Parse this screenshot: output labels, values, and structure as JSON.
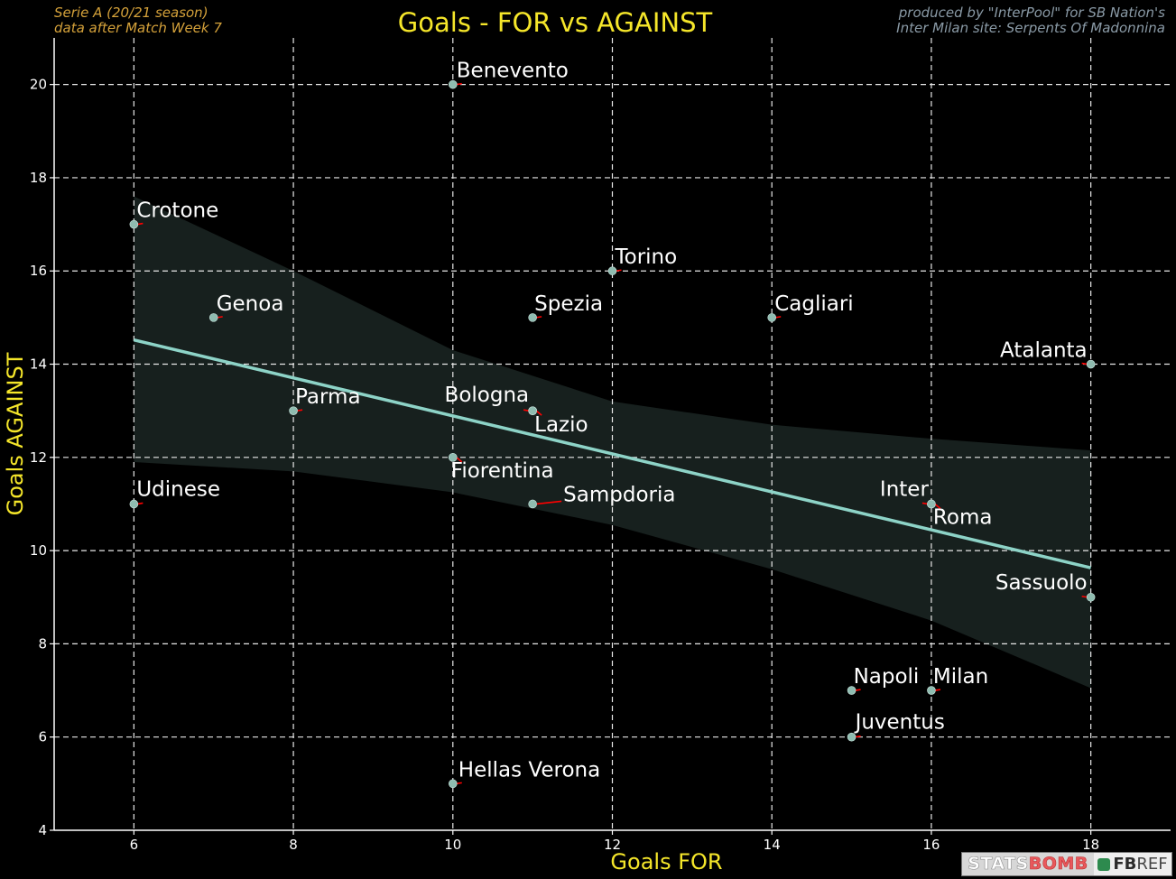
{
  "header": {
    "left_line1": "Serie A  (20/21 season)",
    "left_line2": "data after Match Week 7",
    "right_line1": "produced by \"InterPool\" for SB Nation's",
    "right_line2": "Inter Milan site: Serpents Of Madonnina"
  },
  "chart_data": {
    "type": "scatter",
    "title": "Goals - FOR vs AGAINST",
    "xlabel": "Goals FOR",
    "ylabel": "Goals AGAINST",
    "xlim": [
      5,
      19
    ],
    "ylim": [
      4,
      21
    ],
    "xticks": [
      6,
      8,
      10,
      12,
      14,
      16,
      18
    ],
    "yticks": [
      4,
      6,
      8,
      10,
      12,
      14,
      16,
      18,
      20
    ],
    "grid": true,
    "points": [
      {
        "label": "Benevento",
        "x": 10,
        "y": 20
      },
      {
        "label": "Crotone",
        "x": 6,
        "y": 17
      },
      {
        "label": "Torino",
        "x": 12,
        "y": 16
      },
      {
        "label": "Genoa",
        "x": 7,
        "y": 15
      },
      {
        "label": "Spezia",
        "x": 11,
        "y": 15
      },
      {
        "label": "Cagliari",
        "x": 14,
        "y": 15
      },
      {
        "label": "Atalanta",
        "x": 18,
        "y": 14
      },
      {
        "label": "Parma",
        "x": 8,
        "y": 13
      },
      {
        "label": "Bologna",
        "x": 11,
        "y": 13
      },
      {
        "label": "Lazio",
        "x": 11,
        "y": 13
      },
      {
        "label": "Fiorentina",
        "x": 10,
        "y": 12
      },
      {
        "label": "Udinese",
        "x": 6,
        "y": 11
      },
      {
        "label": "Sampdoria",
        "x": 11,
        "y": 11
      },
      {
        "label": "Inter",
        "x": 16,
        "y": 11
      },
      {
        "label": "Roma",
        "x": 16,
        "y": 11
      },
      {
        "label": "Sassuolo",
        "x": 18,
        "y": 9
      },
      {
        "label": "Napoli",
        "x": 15,
        "y": 7
      },
      {
        "label": "Milan",
        "x": 16,
        "y": 7
      },
      {
        "label": "Juventus",
        "x": 15,
        "y": 6
      },
      {
        "label": "Hellas Verona",
        "x": 10,
        "y": 5
      }
    ],
    "regression": {
      "line": [
        {
          "x": 6,
          "y": 14.52
        },
        {
          "x": 18,
          "y": 9.63
        }
      ],
      "ci_upper": [
        {
          "x": 6,
          "y": 17.6
        },
        {
          "x": 8,
          "y": 16.0
        },
        {
          "x": 10,
          "y": 14.3
        },
        {
          "x": 12,
          "y": 13.2
        },
        {
          "x": 14,
          "y": 12.7
        },
        {
          "x": 16,
          "y": 12.4
        },
        {
          "x": 18,
          "y": 12.15
        }
      ],
      "ci_lower": [
        {
          "x": 6,
          "y": 11.9
        },
        {
          "x": 8,
          "y": 11.7
        },
        {
          "x": 10,
          "y": 11.25
        },
        {
          "x": 12,
          "y": 10.55
        },
        {
          "x": 14,
          "y": 9.6
        },
        {
          "x": 16,
          "y": 8.5
        },
        {
          "x": 18,
          "y": 7.05
        }
      ]
    },
    "colors": {
      "point": "#8fbcb0",
      "arrow": "#ff0000",
      "line": "#8dd3c7",
      "band": "#17201e",
      "grid": "#e8e8e8",
      "axis_label": "#f5e62a",
      "text": "#ffffff"
    }
  },
  "logos": {
    "statsbomb_a": "STATS",
    "statsbomb_b": "BOMB",
    "fbref_a": "FB",
    "fbref_b": "REF"
  }
}
